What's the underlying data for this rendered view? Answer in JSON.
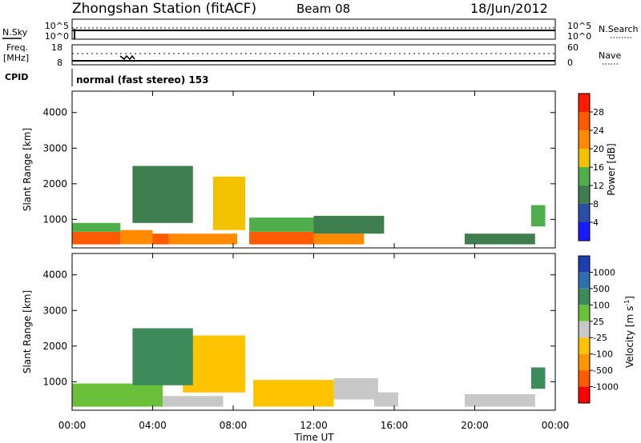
{
  "header": {
    "station": "Zhongshan Station (fitACF)",
    "beam": "Beam 08",
    "date": "18/Jun/2012"
  },
  "noise_panel": {
    "left_label": "N.Sky",
    "right_label": "N.Search",
    "left_ticks": [
      "10^5",
      "10^0"
    ],
    "right_ticks": [
      "10^5",
      "10^0"
    ]
  },
  "freq_panel": {
    "left_label_line1": "Freq.",
    "left_label_line2": "[MHz]",
    "left_ticks": [
      "18",
      "8"
    ],
    "right_label": "Nave",
    "right_ticks": [
      "60",
      "0"
    ]
  },
  "cpid_panel": {
    "label": "CPID",
    "text": "normal (fast stereo) 153"
  },
  "colors": {
    "power_scale": [
      "#1a1aff",
      "#2b4fa8",
      "#3f7f4f",
      "#4fae4a",
      "#f2c200",
      "#ff8a00",
      "#ff5a00",
      "#ff1a00"
    ],
    "velocity_scale": [
      "#ff0000",
      "#ff5a00",
      "#ff9500",
      "#ffc400",
      "#c8c8c8",
      "#6bc03a",
      "#3d8b5a",
      "#2e6fb0",
      "#1e3fb0"
    ]
  },
  "chart_data": [
    {
      "type": "heatmap",
      "name": "power",
      "ylabel": "Slant Range [km]",
      "yticks": [
        "1000",
        "2000",
        "3000",
        "4000"
      ],
      "ylim": [
        200,
        4600
      ],
      "xlim": [
        0,
        24
      ],
      "colorbar_label": "Power [dB]",
      "colorbar_ticks": [
        "4",
        "8",
        "12",
        "16",
        "20",
        "24",
        "28"
      ],
      "colorbar_range": [
        0,
        32
      ],
      "regions": [
        {
          "t0": 0.0,
          "t1": 2.4,
          "r0": 300,
          "r1": 650,
          "value": 27
        },
        {
          "t0": 0.0,
          "t1": 2.4,
          "r0": 650,
          "r1": 900,
          "value": 14
        },
        {
          "t0": 2.4,
          "t1": 4.0,
          "r0": 300,
          "r1": 700,
          "value": 22
        },
        {
          "t0": 4.0,
          "t1": 4.8,
          "r0": 300,
          "r1": 600,
          "value": 26
        },
        {
          "t0": 4.8,
          "t1": 8.2,
          "r0": 300,
          "r1": 600,
          "value": 20
        },
        {
          "t0": 7.0,
          "t1": 8.6,
          "r0": 700,
          "r1": 2200,
          "value": 16
        },
        {
          "t0": 3.0,
          "t1": 6.0,
          "r0": 900,
          "r1": 2500,
          "value": 10
        },
        {
          "t0": 8.8,
          "t1": 12.0,
          "r0": 300,
          "r1": 650,
          "value": 27
        },
        {
          "t0": 8.8,
          "t1": 12.5,
          "r0": 650,
          "r1": 1050,
          "value": 12
        },
        {
          "t0": 12.0,
          "t1": 14.5,
          "r0": 300,
          "r1": 600,
          "value": 22
        },
        {
          "t0": 12.0,
          "t1": 15.5,
          "r0": 600,
          "r1": 1100,
          "value": 8
        },
        {
          "t0": 19.5,
          "t1": 23.0,
          "r0": 300,
          "r1": 600,
          "value": 10
        },
        {
          "t0": 22.8,
          "t1": 23.5,
          "r0": 800,
          "r1": 1400,
          "value": 12
        }
      ]
    },
    {
      "type": "heatmap",
      "name": "velocity",
      "ylabel": "Slant Range [km]",
      "yticks": [
        "1000",
        "2000",
        "3000",
        "4000"
      ],
      "ylim": [
        200,
        4600
      ],
      "xlim": [
        0,
        24
      ],
      "colorbar_label": "Velocity [m s",
      "colorbar_label_sup": "-1",
      "colorbar_label_end": "]",
      "colorbar_ticks": [
        "1000",
        "500",
        "100",
        "25",
        "-25",
        "-100",
        "-500",
        "-1000"
      ],
      "colorbar_range": [
        -1250,
        1250
      ],
      "regions": [
        {
          "t0": 0.0,
          "t1": 4.5,
          "r0": 300,
          "r1": 950,
          "value": 150
        },
        {
          "t0": 4.5,
          "t1": 7.5,
          "r0": 300,
          "r1": 600,
          "value": 100
        },
        {
          "t0": 5.5,
          "t1": 8.6,
          "r0": 700,
          "r1": 2300,
          "value": -250
        },
        {
          "t0": 3.0,
          "t1": 6.0,
          "r0": 900,
          "r1": 2500,
          "value": 600
        },
        {
          "t0": 9.0,
          "t1": 13.0,
          "r0": 300,
          "r1": 1050,
          "value": -250
        },
        {
          "t0": 13.0,
          "t1": 15.2,
          "r0": 500,
          "r1": 1100,
          "value": 0
        },
        {
          "t0": 15.0,
          "t1": 16.2,
          "r0": 300,
          "r1": 700,
          "value": -100
        },
        {
          "t0": 19.5,
          "t1": 23.0,
          "r0": 300,
          "r1": 650,
          "value": 80
        },
        {
          "t0": 22.8,
          "t1": 23.5,
          "r0": 800,
          "r1": 1400,
          "value": 500
        }
      ]
    }
  ],
  "xaxis": {
    "label": "Time UT",
    "ticks": [
      "00:00",
      "04:00",
      "08:00",
      "12:00",
      "16:00",
      "20:00",
      "00:00"
    ]
  }
}
